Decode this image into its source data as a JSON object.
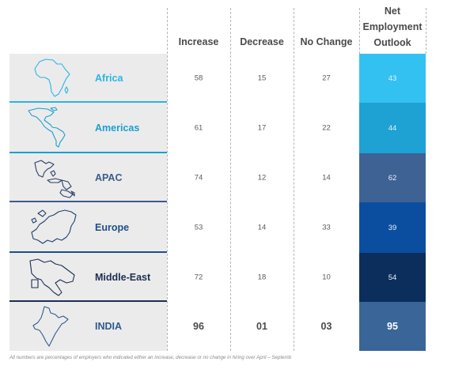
{
  "columns": {
    "increase": "Increase",
    "decrease": "Decrease",
    "no_change": "No Change",
    "neo_line1": "Net",
    "neo_line2": "Employment",
    "neo_line3": "Outlook"
  },
  "rows": [
    {
      "region": "Africa",
      "map_icon": "africa-map-icon",
      "increase": "58",
      "decrease": "15",
      "no_change": "27",
      "neo": "43",
      "name_color": "#2bb3e8",
      "neo_color": "#33c1f2",
      "divider_color": "#2bb3e8",
      "map_color": "#2bb3e8"
    },
    {
      "region": "Americas",
      "map_icon": "americas-map-icon",
      "increase": "61",
      "decrease": "17",
      "no_change": "22",
      "neo": "44",
      "name_color": "#1a9fd0",
      "neo_color": "#1ea1d3",
      "divider_color": "#1a9fd0",
      "map_color": "#1a9fd0"
    },
    {
      "region": "APAC",
      "map_icon": "apac-map-icon",
      "increase": "74",
      "decrease": "12",
      "no_change": "14",
      "neo": "62",
      "name_color": "#3b5c8c",
      "neo_color": "#3e6294",
      "divider_color": "#3b5c8c",
      "map_color": "#2a3f66"
    },
    {
      "region": "Europe",
      "map_icon": "europe-map-icon",
      "increase": "53",
      "decrease": "14",
      "no_change": "33",
      "neo": "39",
      "name_color": "#1f4d8c",
      "neo_color": "#0b4ea0",
      "divider_color": "#1f4d8c",
      "map_color": "#1f3f70"
    },
    {
      "region": "Middle-East",
      "map_icon": "middle-east-map-icon",
      "increase": "72",
      "decrease": "18",
      "no_change": "10",
      "neo": "54",
      "name_color": "#1c2f52",
      "neo_color": "#0c2e5c",
      "divider_color": "#1c2f52",
      "map_color": "#1c2f52"
    },
    {
      "region": "INDIA",
      "map_icon": "india-map-icon",
      "increase": "96",
      "decrease": "01",
      "no_change": "03",
      "neo": "95",
      "name_color": "#2e5a8e",
      "neo_color": "#3a6599",
      "divider_color": "#2e5a8e",
      "map_color": "#2e5a8e"
    }
  ],
  "footnote": "All numbers are percentages of employers who indicated either an increase, decrease or no change in hiring over April – Septemb"
}
